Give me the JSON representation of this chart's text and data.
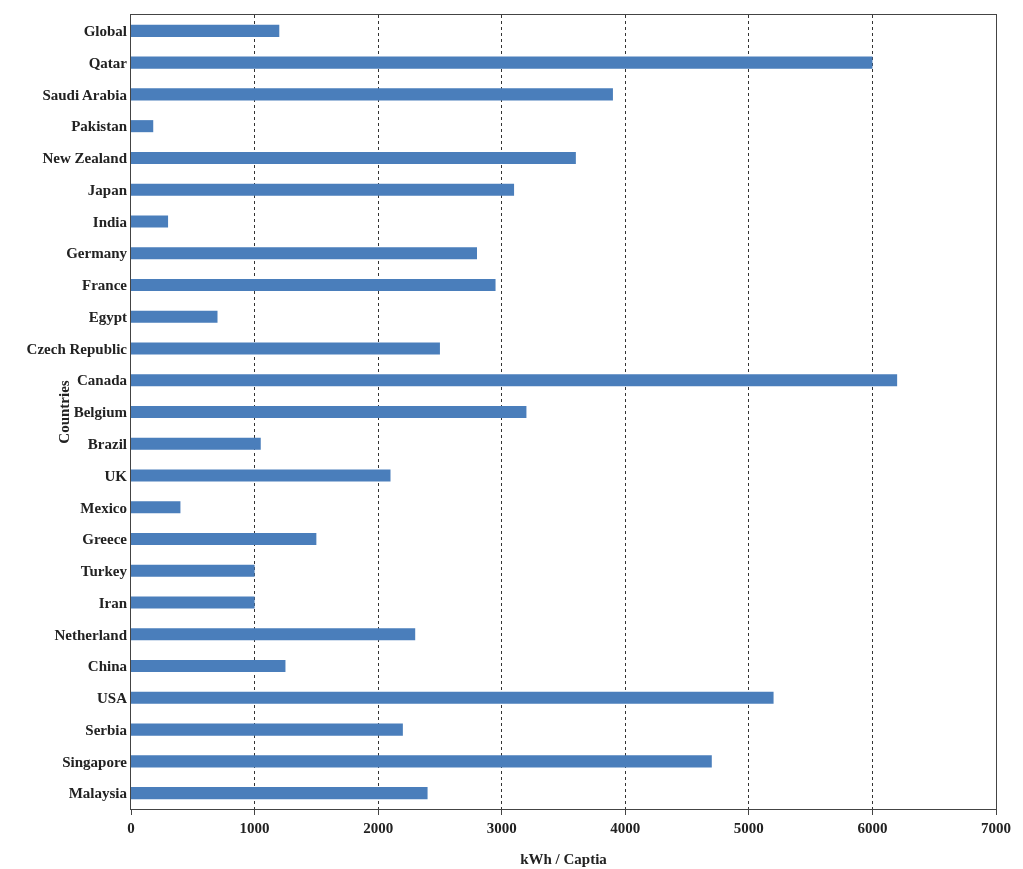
{
  "chart_data": {
    "type": "bar",
    "orientation": "horizontal",
    "xlabel": "kWh / Captia",
    "ylabel": "Countries",
    "categories": [
      "Global",
      "Qatar",
      "Saudi Arabia",
      "Pakistan",
      "New Zealand",
      "Japan",
      "India",
      "Germany",
      "France",
      "Egypt",
      "Czech Republic",
      "Canada",
      "Belgium",
      "Brazil",
      "UK",
      "Mexico",
      "Greece",
      "Turkey",
      "Iran",
      "Netherland",
      "China",
      "USA",
      "Serbia",
      "Singapore",
      "Malaysia"
    ],
    "values": [
      1200,
      6000,
      3900,
      180,
      3600,
      3100,
      300,
      2800,
      2950,
      700,
      2500,
      6200,
      3200,
      1050,
      2100,
      400,
      1500,
      1000,
      1000,
      2300,
      1250,
      5200,
      2200,
      4700,
      2400
    ],
    "color": "#4a7ebb",
    "xlim": [
      0,
      7000
    ],
    "xticks": [
      0,
      1000,
      2000,
      3000,
      4000,
      5000,
      6000,
      7000
    ],
    "grid": "x"
  }
}
